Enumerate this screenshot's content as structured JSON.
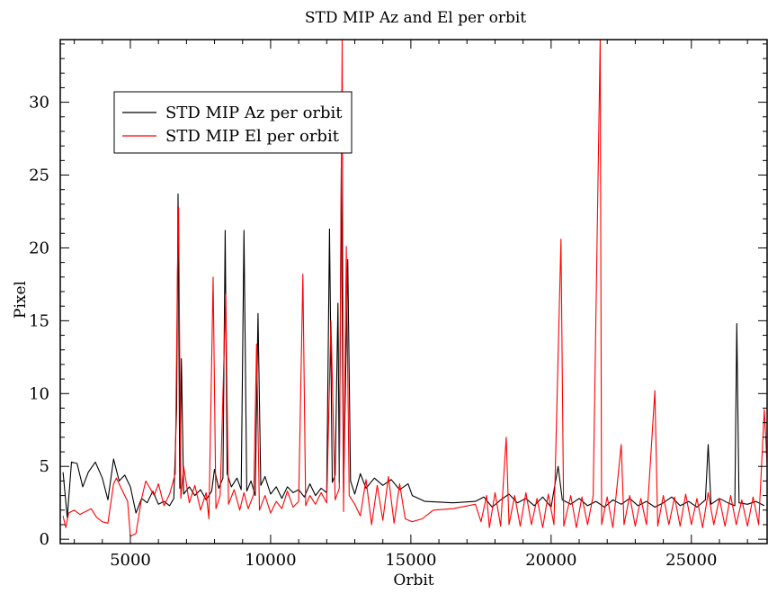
{
  "chart_data": {
    "type": "line",
    "title": "STD MIP Az and El per orbit",
    "xlabel": "Orbit",
    "ylabel": "Pixel",
    "xlim": [
      2500,
      27700
    ],
    "ylim": [
      -0.3,
      34.3
    ],
    "x_ticks": [
      5000,
      10000,
      15000,
      20000,
      25000
    ],
    "y_ticks": [
      0,
      5,
      10,
      15,
      20,
      25,
      30
    ],
    "x_tick_labels": [
      "5000",
      "10000",
      "15000",
      "20000",
      "25000"
    ],
    "y_tick_labels": [
      "0",
      "5",
      "10",
      "15",
      "20",
      "25",
      "30"
    ],
    "legend_position": "top-left",
    "grid": false,
    "series": [
      {
        "name": "STD MIP Az per orbit",
        "color": "#000000",
        "points": [
          [
            2600,
            4.6
          ],
          [
            2750,
            1.5
          ],
          [
            2900,
            5.3
          ],
          [
            3100,
            5.2
          ],
          [
            3300,
            3.6
          ],
          [
            3500,
            4.6
          ],
          [
            3750,
            5.3
          ],
          [
            4000,
            4.2
          ],
          [
            4200,
            2.7
          ],
          [
            4400,
            5.5
          ],
          [
            4600,
            4.0
          ],
          [
            4800,
            4.4
          ],
          [
            5000,
            3.6
          ],
          [
            5200,
            1.8
          ],
          [
            5400,
            2.8
          ],
          [
            5600,
            2.5
          ],
          [
            5800,
            3.3
          ],
          [
            6000,
            2.4
          ],
          [
            6200,
            2.6
          ],
          [
            6400,
            2.3
          ],
          [
            6550,
            2.8
          ],
          [
            6650,
            9.0
          ],
          [
            6700,
            23.7
          ],
          [
            6760,
            3.5
          ],
          [
            6820,
            12.4
          ],
          [
            6900,
            3.1
          ],
          [
            7100,
            3.6
          ],
          [
            7300,
            3.0
          ],
          [
            7500,
            3.4
          ],
          [
            7700,
            2.7
          ],
          [
            7900,
            3.3
          ],
          [
            8000,
            4.8
          ],
          [
            8150,
            3.5
          ],
          [
            8300,
            4.2
          ],
          [
            8380,
            21.2
          ],
          [
            8450,
            4.5
          ],
          [
            8600,
            3.6
          ],
          [
            8800,
            4.2
          ],
          [
            8950,
            3.4
          ],
          [
            9050,
            21.2
          ],
          [
            9150,
            3.3
          ],
          [
            9300,
            4.0
          ],
          [
            9450,
            3.0
          ],
          [
            9550,
            15.5
          ],
          [
            9650,
            3.7
          ],
          [
            9800,
            4.3
          ],
          [
            10000,
            3.1
          ],
          [
            10200,
            3.6
          ],
          [
            10400,
            2.8
          ],
          [
            10600,
            3.6
          ],
          [
            10800,
            3.2
          ],
          [
            11000,
            3.4
          ],
          [
            11200,
            2.9
          ],
          [
            11400,
            3.8
          ],
          [
            11600,
            3.0
          ],
          [
            11800,
            3.5
          ],
          [
            12000,
            3.2
          ],
          [
            12100,
            21.3
          ],
          [
            12200,
            3.9
          ],
          [
            12300,
            4.4
          ],
          [
            12400,
            16.2
          ],
          [
            12450,
            3.9
          ],
          [
            12520,
            25.5
          ],
          [
            12600,
            3.2
          ],
          [
            12750,
            19.2
          ],
          [
            12850,
            4.0
          ],
          [
            13000,
            3.1
          ],
          [
            13200,
            4.5
          ],
          [
            13400,
            3.5
          ],
          [
            13700,
            4.2
          ],
          [
            14000,
            3.7
          ],
          [
            14300,
            4.1
          ],
          [
            14600,
            3.4
          ],
          [
            14900,
            3.8
          ],
          [
            15050,
            3.0
          ],
          [
            15500,
            2.6
          ],
          [
            16500,
            2.5
          ],
          [
            17300,
            2.6
          ],
          [
            17600,
            2.9
          ],
          [
            17900,
            2.2
          ],
          [
            18200,
            2.7
          ],
          [
            18500,
            3.1
          ],
          [
            18800,
            2.5
          ],
          [
            19100,
            2.8
          ],
          [
            19400,
            2.3
          ],
          [
            19700,
            2.9
          ],
          [
            20000,
            2.2
          ],
          [
            20250,
            5.0
          ],
          [
            20400,
            2.7
          ],
          [
            20700,
            2.4
          ],
          [
            21000,
            2.8
          ],
          [
            21300,
            2.3
          ],
          [
            21600,
            2.6
          ],
          [
            21900,
            2.2
          ],
          [
            22200,
            2.7
          ],
          [
            22500,
            2.4
          ],
          [
            22800,
            2.8
          ],
          [
            23100,
            2.3
          ],
          [
            23400,
            2.6
          ],
          [
            23700,
            2.2
          ],
          [
            24000,
            2.5
          ],
          [
            24300,
            2.9
          ],
          [
            24600,
            2.3
          ],
          [
            24900,
            2.6
          ],
          [
            25200,
            2.2
          ],
          [
            25500,
            2.7
          ],
          [
            25600,
            6.5
          ],
          [
            25700,
            2.4
          ],
          [
            26000,
            2.8
          ],
          [
            26300,
            2.5
          ],
          [
            26550,
            2.3
          ],
          [
            26620,
            14.8
          ],
          [
            26700,
            2.5
          ],
          [
            27000,
            2.4
          ],
          [
            27300,
            2.6
          ],
          [
            27600,
            2.3
          ]
        ]
      },
      {
        "name": "STD MIP El per orbit",
        "color": "#ff0000",
        "points": [
          [
            2600,
            1.6
          ],
          [
            2700,
            0.8
          ],
          [
            2800,
            1.8
          ],
          [
            3000,
            2.0
          ],
          [
            3200,
            1.7
          ],
          [
            3400,
            1.9
          ],
          [
            3600,
            2.1
          ],
          [
            3800,
            1.5
          ],
          [
            4000,
            1.2
          ],
          [
            4200,
            1.1
          ],
          [
            4400,
            3.8
          ],
          [
            4500,
            4.2
          ],
          [
            4700,
            3.4
          ],
          [
            4900,
            2.6
          ],
          [
            5000,
            0.2
          ],
          [
            5200,
            0.4
          ],
          [
            5400,
            2.8
          ],
          [
            5550,
            4.0
          ],
          [
            5700,
            3.5
          ],
          [
            5850,
            3.0
          ],
          [
            6000,
            3.8
          ],
          [
            6200,
            2.3
          ],
          [
            6400,
            3.1
          ],
          [
            6600,
            4.5
          ],
          [
            6680,
            18.5
          ],
          [
            6720,
            22.8
          ],
          [
            6800,
            2.8
          ],
          [
            6900,
            5.0
          ],
          [
            7100,
            2.5
          ],
          [
            7300,
            3.7
          ],
          [
            7500,
            2.0
          ],
          [
            7700,
            3.2
          ],
          [
            7800,
            1.4
          ],
          [
            7950,
            18.0
          ],
          [
            8050,
            2.1
          ],
          [
            8200,
            3.0
          ],
          [
            8400,
            16.8
          ],
          [
            8500,
            2.4
          ],
          [
            8700,
            3.4
          ],
          [
            8900,
            2.0
          ],
          [
            9050,
            3.2
          ],
          [
            9200,
            2.1
          ],
          [
            9400,
            3.1
          ],
          [
            9500,
            13.4
          ],
          [
            9600,
            2.0
          ],
          [
            9800,
            3.0
          ],
          [
            10000,
            1.8
          ],
          [
            10200,
            2.6
          ],
          [
            10400,
            2.1
          ],
          [
            10600,
            3.3
          ],
          [
            10800,
            2.2
          ],
          [
            11000,
            2.6
          ],
          [
            11150,
            18.2
          ],
          [
            11250,
            2.3
          ],
          [
            11400,
            3.0
          ],
          [
            11600,
            2.4
          ],
          [
            11800,
            3.2
          ],
          [
            12000,
            2.5
          ],
          [
            12150,
            15.0
          ],
          [
            12300,
            2.7
          ],
          [
            12450,
            3.5
          ],
          [
            12550,
            34.3
          ],
          [
            12600,
            1.9
          ],
          [
            12700,
            20.1
          ],
          [
            12800,
            3.0
          ],
          [
            13000,
            2.4
          ],
          [
            13200,
            1.6
          ],
          [
            13400,
            4.1
          ],
          [
            13600,
            1.0
          ],
          [
            13800,
            3.7
          ],
          [
            14000,
            1.3
          ],
          [
            14200,
            4.3
          ],
          [
            14400,
            1.1
          ],
          [
            14600,
            3.8
          ],
          [
            14800,
            1.4
          ],
          [
            15050,
            1.2
          ],
          [
            15400,
            1.4
          ],
          [
            15800,
            2.0
          ],
          [
            16500,
            2.1
          ],
          [
            17300,
            2.4
          ],
          [
            17500,
            1.2
          ],
          [
            17700,
            3.0
          ],
          [
            17800,
            0.8
          ],
          [
            18000,
            3.2
          ],
          [
            18200,
            0.9
          ],
          [
            18400,
            7.0
          ],
          [
            18500,
            1.0
          ],
          [
            18700,
            3.0
          ],
          [
            18900,
            0.9
          ],
          [
            19100,
            3.2
          ],
          [
            19300,
            1.0
          ],
          [
            19500,
            2.8
          ],
          [
            19700,
            0.8
          ],
          [
            19900,
            3.1
          ],
          [
            20100,
            1.0
          ],
          [
            20350,
            20.6
          ],
          [
            20450,
            0.9
          ],
          [
            20700,
            3.0
          ],
          [
            20900,
            0.8
          ],
          [
            21100,
            2.9
          ],
          [
            21300,
            1.0
          ],
          [
            21500,
            3.0
          ],
          [
            21750,
            34.3
          ],
          [
            21800,
            1.0
          ],
          [
            22000,
            2.9
          ],
          [
            22200,
            0.8
          ],
          [
            22500,
            6.5
          ],
          [
            22600,
            1.0
          ],
          [
            22800,
            3.0
          ],
          [
            23000,
            0.9
          ],
          [
            23200,
            2.8
          ],
          [
            23400,
            1.0
          ],
          [
            23700,
            10.2
          ],
          [
            23800,
            0.9
          ],
          [
            24000,
            3.0
          ],
          [
            24200,
            1.0
          ],
          [
            24400,
            2.9
          ],
          [
            24600,
            0.9
          ],
          [
            24800,
            3.1
          ],
          [
            25000,
            1.0
          ],
          [
            25200,
            2.8
          ],
          [
            25400,
            0.8
          ],
          [
            25600,
            3.2
          ],
          [
            25800,
            1.0
          ],
          [
            26000,
            2.8
          ],
          [
            26200,
            0.9
          ],
          [
            26400,
            3.0
          ],
          [
            26600,
            1.0
          ],
          [
            26800,
            2.7
          ],
          [
            27000,
            0.9
          ],
          [
            27200,
            2.9
          ],
          [
            27400,
            1.0
          ],
          [
            27600,
            8.9
          ],
          [
            27700,
            5.0
          ]
        ]
      }
    ]
  }
}
